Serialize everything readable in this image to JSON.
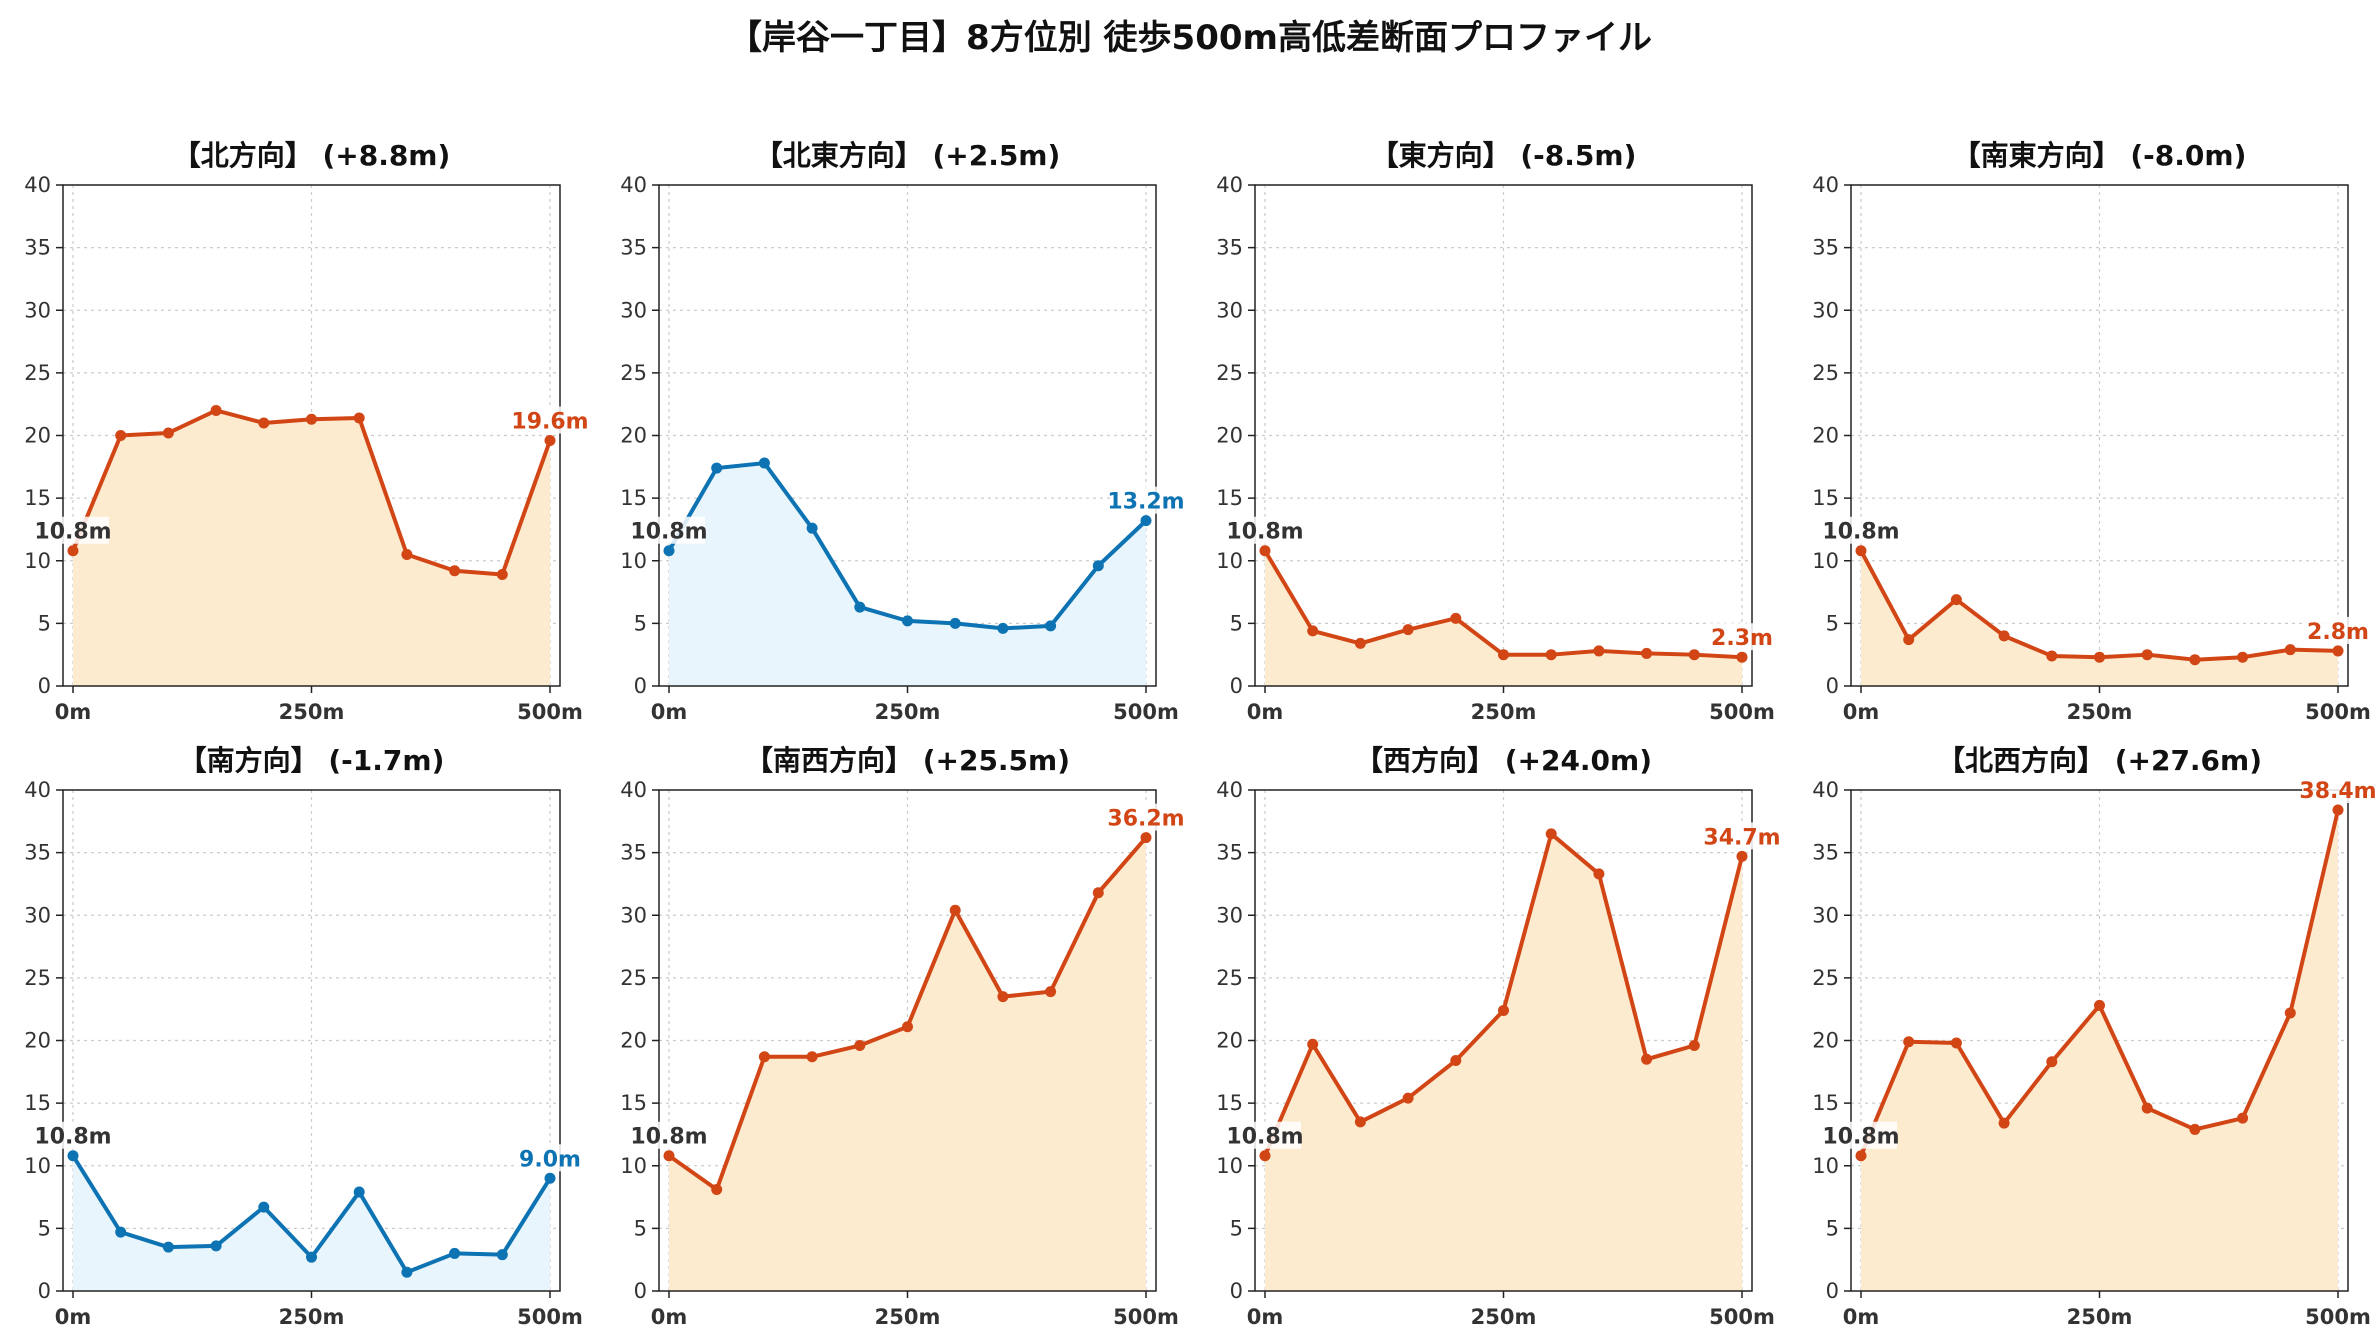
{
  "title": "【岸谷一丁目】8方位別 徒歩500m高低差断面プロファイル",
  "chart_data": [
    {
      "type": "line",
      "title": "【北方向】 (+8.8m)",
      "trend": "up",
      "x": [
        0,
        50,
        100,
        150,
        200,
        250,
        300,
        350,
        400,
        450,
        500
      ],
      "values": [
        10.8,
        20.0,
        20.2,
        22.0,
        21.0,
        21.3,
        21.4,
        10.5,
        9.2,
        8.9,
        19.6
      ],
      "start_label": "10.8m",
      "end_label": "19.6m",
      "xticks": [
        "0m",
        "250m",
        "500m"
      ],
      "ylim": [
        0,
        40
      ],
      "yticks": [
        0,
        5,
        10,
        15,
        20,
        25,
        30,
        35,
        40
      ],
      "grid": true
    },
    {
      "type": "line",
      "title": "【北東方向】 (+2.5m)",
      "trend": "down",
      "x": [
        0,
        50,
        100,
        150,
        200,
        250,
        300,
        350,
        400,
        450,
        500
      ],
      "values": [
        10.8,
        17.4,
        17.8,
        12.6,
        6.3,
        5.2,
        5.0,
        4.6,
        4.8,
        9.6,
        13.2
      ],
      "start_label": "10.8m",
      "end_label": "13.2m",
      "xticks": [
        "0m",
        "250m",
        "500m"
      ],
      "ylim": [
        0,
        40
      ],
      "yticks": [
        0,
        5,
        10,
        15,
        20,
        25,
        30,
        35,
        40
      ],
      "grid": true
    },
    {
      "type": "line",
      "title": "【東方向】 (-8.5m)",
      "trend": "up",
      "x": [
        0,
        50,
        100,
        150,
        200,
        250,
        300,
        350,
        400,
        450,
        500
      ],
      "values": [
        10.8,
        4.4,
        3.4,
        4.5,
        5.4,
        2.5,
        2.5,
        2.8,
        2.6,
        2.5,
        2.3
      ],
      "start_label": "10.8m",
      "end_label": "2.3m",
      "xticks": [
        "0m",
        "250m",
        "500m"
      ],
      "ylim": [
        0,
        40
      ],
      "yticks": [
        0,
        5,
        10,
        15,
        20,
        25,
        30,
        35,
        40
      ],
      "grid": true
    },
    {
      "type": "line",
      "title": "【南東方向】 (-8.0m)",
      "trend": "up",
      "x": [
        0,
        50,
        100,
        150,
        200,
        250,
        300,
        350,
        400,
        450,
        500
      ],
      "values": [
        10.8,
        3.7,
        6.9,
        4.0,
        2.4,
        2.3,
        2.5,
        2.1,
        2.3,
        2.9,
        2.8
      ],
      "start_label": "10.8m",
      "end_label": "2.8m",
      "xticks": [
        "0m",
        "250m",
        "500m"
      ],
      "ylim": [
        0,
        40
      ],
      "yticks": [
        0,
        5,
        10,
        15,
        20,
        25,
        30,
        35,
        40
      ],
      "grid": true
    },
    {
      "type": "line",
      "title": "【南方向】 (-1.7m)",
      "trend": "down",
      "x": [
        0,
        50,
        100,
        150,
        200,
        250,
        300,
        350,
        400,
        450,
        500
      ],
      "values": [
        10.8,
        4.7,
        3.5,
        3.6,
        6.7,
        2.7,
        7.9,
        1.5,
        3.0,
        2.9,
        9.0
      ],
      "start_label": "10.8m",
      "end_label": "9.0m",
      "xticks": [
        "0m",
        "250m",
        "500m"
      ],
      "ylim": [
        0,
        40
      ],
      "yticks": [
        0,
        5,
        10,
        15,
        20,
        25,
        30,
        35,
        40
      ],
      "grid": true
    },
    {
      "type": "line",
      "title": "【南西方向】 (+25.5m)",
      "trend": "up",
      "x": [
        0,
        50,
        100,
        150,
        200,
        250,
        300,
        350,
        400,
        450,
        500
      ],
      "values": [
        10.8,
        8.1,
        18.7,
        18.7,
        19.6,
        21.1,
        30.4,
        23.5,
        23.9,
        31.8,
        36.2
      ],
      "start_label": "10.8m",
      "end_label": "36.2m",
      "xticks": [
        "0m",
        "250m",
        "500m"
      ],
      "ylim": [
        0,
        40
      ],
      "yticks": [
        0,
        5,
        10,
        15,
        20,
        25,
        30,
        35,
        40
      ],
      "grid": true
    },
    {
      "type": "line",
      "title": "【西方向】 (+24.0m)",
      "trend": "up",
      "x": [
        0,
        50,
        100,
        150,
        200,
        250,
        300,
        350,
        400,
        450,
        500
      ],
      "values": [
        10.8,
        19.7,
        13.5,
        15.4,
        18.4,
        22.4,
        36.5,
        33.3,
        18.5,
        19.6,
        34.7
      ],
      "start_label": "10.8m",
      "end_label": "34.7m",
      "xticks": [
        "0m",
        "250m",
        "500m"
      ],
      "ylim": [
        0,
        40
      ],
      "yticks": [
        0,
        5,
        10,
        15,
        20,
        25,
        30,
        35,
        40
      ],
      "grid": true
    },
    {
      "type": "line",
      "title": "【北西方向】 (+27.6m)",
      "trend": "up",
      "x": [
        0,
        50,
        100,
        150,
        200,
        250,
        300,
        350,
        400,
        450,
        500
      ],
      "values": [
        10.8,
        19.9,
        19.8,
        13.4,
        18.3,
        22.8,
        14.6,
        12.9,
        13.8,
        22.2,
        38.4
      ],
      "start_label": "10.8m",
      "end_label": "38.4m",
      "xticks": [
        "0m",
        "250m",
        "500m"
      ],
      "ylim": [
        0,
        40
      ],
      "yticks": [
        0,
        5,
        10,
        15,
        20,
        25,
        30,
        35,
        40
      ],
      "grid": true
    }
  ],
  "colors": {
    "up_line": "#d24616",
    "up_fill": "#fdebd0",
    "down_line": "#0d73b3",
    "down_fill": "#e8f5fc",
    "start_label": "#333333",
    "grid": "#cccccc",
    "axis": "#222222"
  }
}
